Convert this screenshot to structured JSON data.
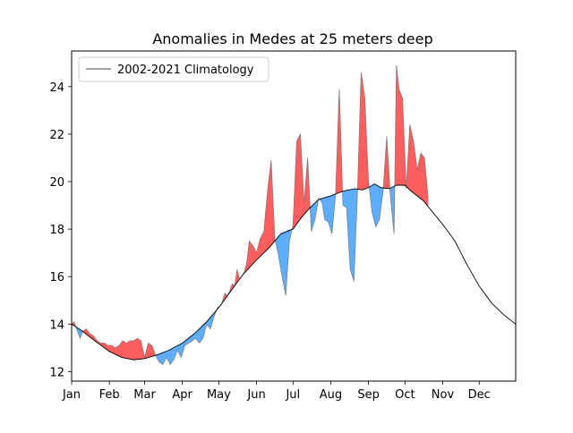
{
  "chart_data": {
    "type": "area",
    "title": "Anomalies in Medes at 25 meters deep",
    "xlabel": "",
    "ylabel": "",
    "x_unit": "day_of_year",
    "xlim": [
      1,
      366
    ],
    "ylim": [
      11.6,
      25.5
    ],
    "yticks": [
      12,
      14,
      16,
      18,
      20,
      22,
      24
    ],
    "xticks": [
      {
        "label": "Jan",
        "day": 1
      },
      {
        "label": "Feb",
        "day": 32
      },
      {
        "label": "Mar",
        "day": 61
      },
      {
        "label": "Apr",
        "day": 92
      },
      {
        "label": "May",
        "day": 122
      },
      {
        "label": "Jun",
        "day": 153
      },
      {
        "label": "Jul",
        "day": 183
      },
      {
        "label": "Aug",
        "day": 214
      },
      {
        "label": "Sep",
        "day": 245
      },
      {
        "label": "Oct",
        "day": 275
      },
      {
        "label": "Nov",
        "day": 306
      },
      {
        "label": "Dec",
        "day": 336
      }
    ],
    "legend": {
      "position": "top-left",
      "entries": [
        "2002-2021 Climatology"
      ]
    },
    "colors": {
      "warm": "#ff5555",
      "cold": "#55aaff",
      "climatology": "#000000"
    },
    "series": [
      {
        "name": "2002-2021 Climatology",
        "x": [
          1,
          10,
          20,
          32,
          42,
          52,
          61,
          71,
          81,
          92,
          102,
          112,
          122,
          132,
          142,
          153,
          163,
          173,
          180,
          183,
          190,
          197,
          204,
          214,
          224,
          234,
          240,
          245,
          250,
          255,
          262,
          268,
          275,
          280,
          290,
          306,
          316,
          326,
          336,
          346,
          356,
          366
        ],
        "y": [
          14.0,
          13.7,
          13.3,
          12.85,
          12.6,
          12.5,
          12.55,
          12.7,
          12.9,
          13.2,
          13.6,
          14.1,
          14.7,
          15.4,
          16.1,
          16.7,
          17.2,
          17.8,
          17.95,
          18.0,
          18.5,
          18.9,
          19.25,
          19.4,
          19.6,
          19.7,
          19.65,
          19.75,
          19.9,
          19.75,
          19.7,
          19.85,
          19.85,
          19.6,
          19.2,
          18.2,
          17.5,
          16.5,
          15.6,
          14.9,
          14.4,
          14.0
        ]
      },
      {
        "name": "",
        "x": [
          1,
          3,
          5,
          8,
          10,
          13,
          16,
          19,
          22,
          25,
          28,
          31,
          34,
          37,
          40,
          43,
          46,
          49,
          52,
          55,
          58,
          61,
          64,
          67,
          70,
          73,
          76,
          79,
          82,
          85,
          88,
          91,
          94,
          97,
          100,
          103,
          106,
          109,
          112,
          115,
          118,
          121,
          124,
          127,
          129,
          131,
          133,
          135,
          137,
          139,
          141,
          143,
          145,
          147,
          150,
          153,
          156,
          159,
          162,
          165,
          168,
          171,
          174,
          177,
          180,
          183,
          186,
          189,
          192,
          195,
          198,
          201,
          204,
          207,
          209,
          212,
          215,
          218,
          221,
          224,
          227,
          230,
          233,
          236,
          239,
          242,
          245,
          248,
          251,
          254,
          257,
          260,
          263,
          266,
          268,
          270,
          273,
          276,
          279,
          282,
          285,
          288,
          291,
          294
        ],
        "y": [
          14.0,
          14.1,
          13.8,
          13.4,
          13.7,
          13.8,
          13.6,
          13.5,
          13.3,
          13.2,
          13.2,
          13.1,
          13.1,
          13.0,
          13.1,
          13.3,
          13.2,
          13.3,
          13.3,
          13.4,
          13.3,
          12.6,
          13.2,
          13.1,
          12.7,
          12.4,
          12.3,
          12.6,
          12.3,
          12.5,
          12.9,
          12.6,
          13.1,
          13.2,
          13.3,
          13.4,
          13.2,
          13.4,
          14.0,
          13.8,
          14.3,
          14.7,
          14.8,
          15.3,
          15.2,
          15.4,
          15.7,
          15.6,
          16.3,
          15.9,
          16.0,
          16.2,
          16.6,
          17.5,
          17.3,
          17.0,
          17.6,
          17.9,
          19.6,
          20.9,
          17.6,
          16.9,
          16.0,
          15.2,
          17.5,
          18.2,
          21.7,
          22.0,
          19.1,
          21.0,
          17.9,
          18.4,
          19.3,
          19.1,
          18.4,
          18.3,
          17.8,
          19.5,
          23.9,
          19.0,
          18.9,
          16.3,
          15.8,
          19.6,
          24.6,
          23.5,
          20.0,
          18.7,
          18.1,
          18.4,
          19.6,
          21.9,
          19.4,
          17.8,
          24.9,
          23.9,
          23.5,
          19.7,
          22.4,
          21.7,
          20.5,
          21.2,
          21.0,
          19.3
        ]
      }
    ]
  }
}
